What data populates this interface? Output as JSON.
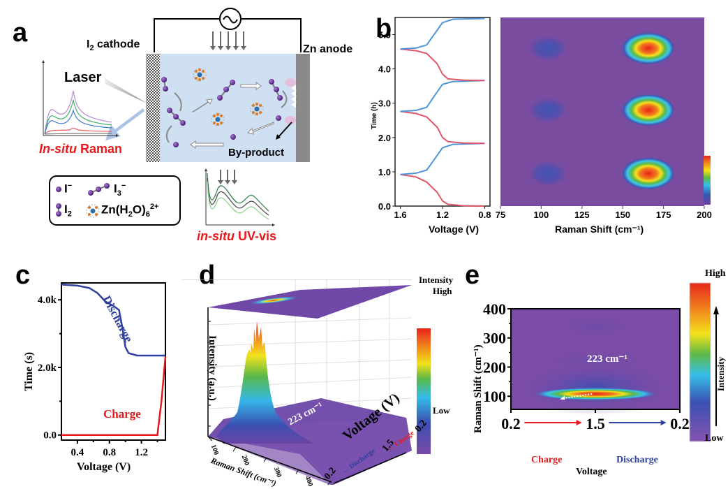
{
  "panels": {
    "a": {
      "label": "a",
      "cathode_label": "I",
      "cathode_sub": "2",
      "cathode_suffix": " cathode",
      "anode_label": "Zn anode",
      "laser_label": "Laser",
      "byproduct_label": "By-product",
      "raman_label_italic": "In-situ",
      "raman_label_rest": " Raman",
      "uvvis_label_italic": "in-situ",
      "uvvis_label_rest": " UV-vis",
      "legend": [
        {
          "species": "I",
          "sup": "−",
          "sub": ""
        },
        {
          "species": "I",
          "sup": "−",
          "sub": "3"
        },
        {
          "species": "I",
          "sup": "",
          "sub": "2"
        },
        {
          "species": "Zn(H",
          "sub": "2",
          "mid": "O)",
          "sub2": "6",
          "sup": "2+"
        }
      ],
      "colors": {
        "electrolyte": "#cfe0f2",
        "iodine": "#5b2a86",
        "red_label": "#e8191d",
        "anode": "#8a8a8a"
      }
    },
    "b": {
      "label": "b",
      "left_plot": {
        "ylabel": "Time (h)",
        "xlabel": "Voltage (V)",
        "yticks": [
          "0.0",
          "1.0",
          "2.0",
          "3.0",
          "4.0",
          "5.0"
        ],
        "xticks": [
          "1.6",
          "1.2",
          "0.8"
        ]
      },
      "right_plot": {
        "xlabel": "Raman Shift (cm⁻¹)",
        "xticks": [
          "75",
          "100",
          "125",
          "150",
          "175",
          "200"
        ]
      }
    },
    "c": {
      "label": "c",
      "ylabel": "Time (s)",
      "xlabel": "Voltage (V)",
      "yticks": [
        "0.0",
        "2.0k",
        "4.0k"
      ],
      "xticks": [
        "0.4",
        "0.8",
        "1.2"
      ],
      "discharge_label": "Discharge",
      "charge_label": "Charge"
    },
    "d": {
      "label": "d",
      "zlabel": "Intensity (a.u.)",
      "xlabel": "Raman Shift (cm⁻¹)",
      "xticks": [
        "100",
        "200",
        "300",
        "400"
      ],
      "ylabel": "Voltage (V)",
      "yticks": [
        "0.2",
        "1.5",
        "0.2"
      ],
      "annotation": "223 cm⁻¹",
      "charge_label": "Charge",
      "discharge_label": "Discharge",
      "colorbar_title": "Intensity",
      "colorbar_high": "High",
      "colorbar_low": "Low"
    },
    "e": {
      "label": "e",
      "ylabel": "Raman Shift (cm⁻¹)",
      "yticks": [
        "100",
        "200",
        "300",
        "400"
      ],
      "xticks": [
        "0.2",
        "1.5",
        "0.2"
      ],
      "xlabel": "Voltage",
      "charge_label": "Charge",
      "discharge_label": "Discharge",
      "annotation_223": "223 cm⁻¹",
      "annotation_108": "108 cm⁻¹",
      "colorbar_title": "Intensity",
      "colorbar_high": "High",
      "colorbar_low": "Low"
    }
  },
  "chart_data": [
    {
      "id": "b-left",
      "type": "line",
      "title": "",
      "xlabel": "Voltage (V)",
      "ylabel": "Time (h)",
      "xlim": [
        1.65,
        0.75
      ],
      "ylim": [
        0,
        5.5
      ],
      "series": [
        {
          "name": "discharge",
          "color": "#e0566a",
          "x": [
            0.8,
            1.0,
            1.15,
            1.2,
            1.25,
            1.35,
            1.45,
            1.6
          ],
          "y": [
            0.0,
            0.01,
            0.05,
            0.15,
            0.4,
            0.7,
            0.85,
            0.92
          ]
        },
        {
          "name": "charge",
          "color": "#4f95d6",
          "x": [
            1.6,
            1.45,
            1.35,
            1.28,
            1.2,
            1.1,
            0.8
          ],
          "y": [
            0.92,
            0.96,
            1.05,
            1.35,
            1.7,
            1.8,
            1.83
          ]
        },
        {
          "name": "discharge",
          "color": "#e0566a",
          "x": [
            0.8,
            1.0,
            1.15,
            1.2,
            1.25,
            1.35,
            1.45,
            1.6
          ],
          "y": [
            1.83,
            1.84,
            1.88,
            2.0,
            2.3,
            2.6,
            2.7,
            2.76
          ]
        },
        {
          "name": "charge",
          "color": "#4f95d6",
          "x": [
            1.6,
            1.45,
            1.35,
            1.28,
            1.2,
            1.1,
            0.8
          ],
          "y": [
            2.76,
            2.79,
            2.88,
            3.2,
            3.55,
            3.63,
            3.66
          ]
        },
        {
          "name": "discharge",
          "color": "#e0566a",
          "x": [
            0.8,
            1.0,
            1.15,
            1.2,
            1.25,
            1.35,
            1.45,
            1.6
          ],
          "y": [
            3.66,
            3.67,
            3.71,
            3.85,
            4.15,
            4.45,
            4.53,
            4.58
          ]
        },
        {
          "name": "charge",
          "color": "#4f95d6",
          "x": [
            1.6,
            1.45,
            1.35,
            1.28,
            1.2,
            1.1,
            0.8
          ],
          "y": [
            4.58,
            4.61,
            4.7,
            5.0,
            5.35,
            5.45,
            5.47
          ]
        }
      ]
    },
    {
      "id": "b-right",
      "type": "heatmap",
      "xlabel": "Raman Shift (cm⁻¹)",
      "ylabel": "Time (h)",
      "xlim": [
        75,
        200
      ],
      "ylim": [
        0,
        5.5
      ],
      "peaks": [
        {
          "x": 164,
          "y": 0.95,
          "intensity": 1.0
        },
        {
          "x": 164,
          "y": 2.8,
          "intensity": 1.0
        },
        {
          "x": 164,
          "y": 4.6,
          "intensity": 1.0
        },
        {
          "x": 104,
          "y": 0.95,
          "intensity": 0.25
        },
        {
          "x": 104,
          "y": 2.8,
          "intensity": 0.25
        },
        {
          "x": 104,
          "y": 4.6,
          "intensity": 0.25
        }
      ]
    },
    {
      "id": "c",
      "type": "line",
      "xlabel": "Voltage (V)",
      "ylabel": "Time (s)",
      "xlim": [
        0.2,
        1.5
      ],
      "ylim": [
        -150,
        4500
      ],
      "series": [
        {
          "name": "Discharge",
          "color": "#2e3f9e",
          "x": [
            0.2,
            0.4,
            0.55,
            0.65,
            0.75,
            0.85,
            0.92,
            0.96,
            1.0,
            1.04,
            1.15,
            1.5
          ],
          "y": [
            4450,
            4420,
            4350,
            4200,
            3950,
            3820,
            3700,
            3200,
            2600,
            2420,
            2350,
            2350
          ]
        },
        {
          "name": "Charge",
          "color": "#e8191d",
          "x": [
            0.2,
            1.0,
            1.4,
            1.45,
            1.5
          ],
          "y": [
            0,
            0,
            0,
            1000,
            2320
          ]
        }
      ]
    },
    {
      "id": "d",
      "type": "heatmap",
      "subtype": "3d-surface",
      "xlabel": "Raman Shift (cm⁻¹)",
      "xlim": [
        50,
        400
      ],
      "ylabel": "Voltage (V)",
      "yticks": [
        "0.2",
        "1.5",
        "0.2"
      ],
      "zlabel": "Intensity (a.u.)",
      "peaks": [
        {
          "raman_shift": 108,
          "voltage_position": "1.5",
          "intensity": 1.0
        }
      ],
      "annotations": [
        "223 cm⁻¹"
      ]
    },
    {
      "id": "e",
      "type": "heatmap",
      "xlabel": "Voltage",
      "xticks": [
        "0.2",
        "1.5",
        "0.2"
      ],
      "ylabel": "Raman Shift (cm⁻¹)",
      "ylim": [
        55,
        400
      ],
      "peaks": [
        {
          "voltage_fraction": 0.5,
          "raman_shift": 108,
          "intensity": 1.0
        },
        {
          "voltage_fraction": 0.5,
          "raman_shift": 223,
          "intensity": 0.08
        },
        {
          "voltage_fraction": 0.5,
          "raman_shift": 340,
          "intensity": 0.05
        }
      ],
      "annotations": [
        "223 cm⁻¹",
        "108 cm⁻¹"
      ]
    }
  ]
}
